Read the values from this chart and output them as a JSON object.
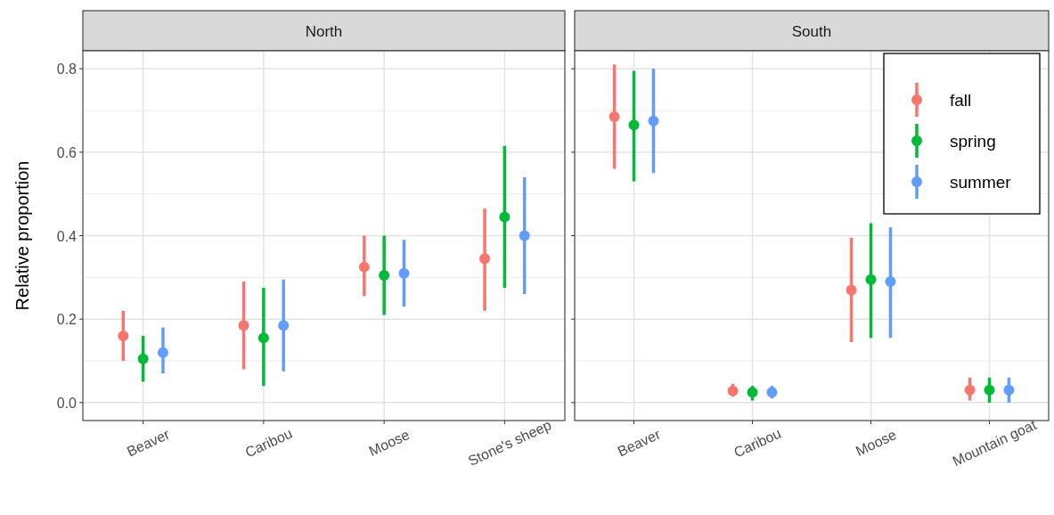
{
  "chart_data": [
    {
      "type": "scatter",
      "title": "North",
      "ylabel": "Relative proportion",
      "categories": [
        "Beaver",
        "Caribou",
        "Moose",
        "Stone's sheep"
      ],
      "ylim": [
        -0.043,
        0.843
      ],
      "yticks": [
        {
          "value": 0,
          "label": "0.0"
        },
        {
          "value": 0.2,
          "label": "0.2"
        },
        {
          "value": 0.4,
          "label": "0.4"
        },
        {
          "value": 0.6,
          "label": "0.6"
        },
        {
          "value": 0.8,
          "label": "0.8"
        }
      ],
      "grid": true,
      "marker": "circle",
      "legend": false,
      "series": [
        {
          "color": "#f8766d",
          "values": [
            0.16,
            0.185,
            0.325,
            0.345
          ],
          "errors": [
            [
              0.1,
              0.22
            ],
            [
              0.08,
              0.29
            ],
            [
              0.255,
              0.4
            ],
            [
              0.22,
              0.465
            ]
          ]
        },
        {
          "color": "#00ba38",
          "values": [
            0.105,
            0.155,
            0.305,
            0.445
          ],
          "errors": [
            [
              0.05,
              0.16
            ],
            [
              0.04,
              0.275
            ],
            [
              0.21,
              0.4
            ],
            [
              0.275,
              0.615
            ]
          ]
        },
        {
          "color": "#619cff",
          "values": [
            0.12,
            0.185,
            0.31,
            0.4
          ],
          "errors": [
            [
              0.07,
              0.18
            ],
            [
              0.075,
              0.295
            ],
            [
              0.23,
              0.39
            ],
            [
              0.26,
              0.54
            ]
          ]
        }
      ]
    },
    {
      "type": "scatter",
      "title": "South",
      "categories": [
        "Beaver",
        "Caribou",
        "Moose",
        "Mountain goat"
      ],
      "ylim": [
        -0.043,
        0.843
      ],
      "yticks": [
        {
          "value": 0,
          "label": null
        },
        {
          "value": 0.2,
          "label": null
        },
        {
          "value": 0.4,
          "label": null
        },
        {
          "value": 0.6,
          "label": null
        },
        {
          "value": 0.8,
          "label": null
        }
      ],
      "tick_labels": "x",
      "grid": true,
      "marker": "circle",
      "legend": "top right",
      "series": [
        {
          "name": "fall",
          "color": "#f8766d",
          "values": [
            0.685,
            0.028,
            0.27,
            0.03
          ],
          "errors": [
            [
              0.56,
              0.81
            ],
            [
              0.015,
              0.045
            ],
            [
              0.145,
              0.395
            ],
            [
              0.005,
              0.06
            ]
          ]
        },
        {
          "name": "spring",
          "color": "#00ba38",
          "values": [
            0.665,
            0.025,
            0.295,
            0.03
          ],
          "errors": [
            [
              0.53,
              0.795
            ],
            [
              0.005,
              0.04
            ],
            [
              0.155,
              0.43
            ],
            [
              0,
              0.06
            ]
          ]
        },
        {
          "name": "summer",
          "color": "#619cff",
          "values": [
            0.675,
            0.025,
            0.29,
            0.03
          ],
          "errors": [
            [
              0.55,
              0.8
            ],
            [
              0.01,
              0.04
            ],
            [
              0.155,
              0.42
            ],
            [
              0,
              0.06
            ]
          ]
        }
      ]
    }
  ]
}
